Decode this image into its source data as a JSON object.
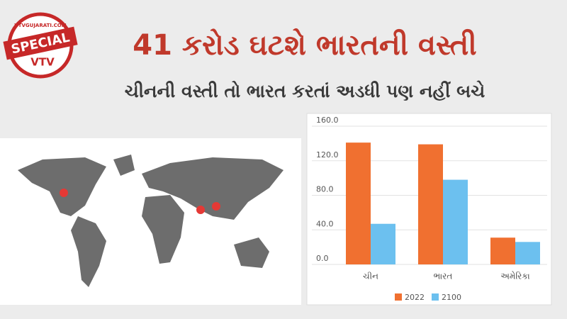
{
  "logo": {
    "site": "VTVGUJARATI.COM",
    "badge": "SPECIAL",
    "brand": "VTV"
  },
  "chart_data": {
    "type": "bar",
    "title": "41 કરોડ ઘટશે ભારતની વસ્તી",
    "subtitle": "ચીનની વસ્તી તો ભારત કરતાં અડધી પણ નહીં બચે",
    "categories": [
      "ચીન",
      "ભારત",
      "અમેરિકા"
    ],
    "series": [
      {
        "name": "2022",
        "color": "#f07030",
        "values": [
          141,
          139,
          31
        ]
      },
      {
        "name": "2100",
        "color": "#6cc0ef",
        "values": [
          47,
          98,
          26
        ]
      }
    ],
    "ylim": [
      0,
      160
    ],
    "yticks": [
      {
        "value": 0,
        "label": "0.0"
      },
      {
        "value": 40,
        "label": "40.0"
      },
      {
        "value": 80,
        "label": "80.0"
      },
      {
        "value": 120,
        "label": "120.0"
      },
      {
        "value": 160,
        "label": "160.0"
      }
    ],
    "grid": true,
    "legend": "bottom"
  }
}
